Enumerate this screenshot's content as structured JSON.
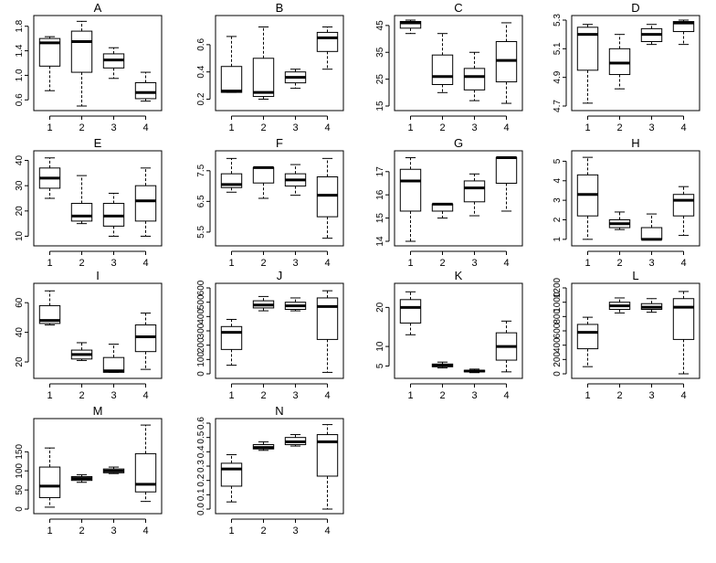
{
  "chart_data": [
    {
      "type": "boxplot",
      "title": "A",
      "categories": [
        "1",
        "2",
        "3",
        "4"
      ],
      "ylim": [
        0.5,
        1.9
      ],
      "yticks": [
        0.6,
        1.0,
        1.4,
        1.8
      ],
      "ytick_labels": [
        "0.6",
        "1.0",
        "1.4",
        "1.8"
      ],
      "boxes": [
        {
          "min": 0.75,
          "q1": 1.15,
          "median": 1.53,
          "q3": 1.6,
          "max": 1.63
        },
        {
          "min": 0.5,
          "q1": 1.05,
          "median": 1.55,
          "q3": 1.72,
          "max": 1.88
        },
        {
          "min": 0.95,
          "q1": 1.12,
          "median": 1.25,
          "q3": 1.35,
          "max": 1.45
        },
        {
          "min": 0.58,
          "q1": 0.62,
          "median": 0.72,
          "q3": 0.88,
          "max": 1.05
        }
      ]
    },
    {
      "type": "boxplot",
      "title": "B",
      "categories": [
        "1",
        "2",
        "3",
        "4"
      ],
      "ylim": [
        0.15,
        0.78
      ],
      "yticks": [
        0.2,
        0.4,
        0.6
      ],
      "ytick_labels": [
        "0.2",
        "0.4",
        "0.6"
      ],
      "boxes": [
        {
          "min": 0.25,
          "q1": 0.25,
          "median": 0.26,
          "q3": 0.44,
          "max": 0.66
        },
        {
          "min": 0.2,
          "q1": 0.22,
          "median": 0.25,
          "q3": 0.5,
          "max": 0.73
        },
        {
          "min": 0.28,
          "q1": 0.32,
          "median": 0.36,
          "q3": 0.4,
          "max": 0.42
        },
        {
          "min": 0.42,
          "q1": 0.55,
          "median": 0.65,
          "q3": 0.69,
          "max": 0.73
        }
      ]
    },
    {
      "type": "boxplot",
      "title": "C",
      "categories": [
        "1",
        "2",
        "3",
        "4"
      ],
      "ylim": [
        15,
        47
      ],
      "yticks": [
        15,
        25,
        35,
        45
      ],
      "ytick_labels": [
        "15",
        "25",
        "35",
        "45"
      ],
      "boxes": [
        {
          "min": 42,
          "q1": 44,
          "median": 46,
          "q3": 46.5,
          "max": 47
        },
        {
          "min": 20,
          "q1": 23,
          "median": 26,
          "q3": 34,
          "max": 42
        },
        {
          "min": 17,
          "q1": 21,
          "median": 26,
          "q3": 29,
          "max": 35
        },
        {
          "min": 16,
          "q1": 24,
          "median": 32,
          "q3": 39,
          "max": 46
        }
      ]
    },
    {
      "type": "boxplot",
      "title": "D",
      "categories": [
        "1",
        "2",
        "3",
        "4"
      ],
      "ylim": [
        4.7,
        5.3
      ],
      "yticks": [
        4.7,
        4.9,
        5.1,
        5.3
      ],
      "ytick_labels": [
        "4.7",
        "4.9",
        "5.1",
        "5.3"
      ],
      "boxes": [
        {
          "min": 4.72,
          "q1": 4.95,
          "median": 5.2,
          "q3": 5.25,
          "max": 5.27
        },
        {
          "min": 4.82,
          "q1": 4.92,
          "median": 5.0,
          "q3": 5.1,
          "max": 5.2
        },
        {
          "min": 5.13,
          "q1": 5.15,
          "median": 5.2,
          "q3": 5.24,
          "max": 5.27
        },
        {
          "min": 5.13,
          "q1": 5.22,
          "median": 5.28,
          "q3": 5.29,
          "max": 5.3
        }
      ]
    },
    {
      "type": "boxplot",
      "title": "E",
      "categories": [
        "1",
        "2",
        "3",
        "4"
      ],
      "ylim": [
        8,
        42
      ],
      "yticks": [
        10,
        20,
        30,
        40
      ],
      "ytick_labels": [
        "10",
        "20",
        "30",
        "40"
      ],
      "boxes": [
        {
          "min": 25,
          "q1": 29,
          "median": 33,
          "q3": 37,
          "max": 41
        },
        {
          "min": 15,
          "q1": 16,
          "median": 18,
          "q3": 23,
          "max": 34
        },
        {
          "min": 10,
          "q1": 14,
          "median": 18,
          "q3": 23,
          "max": 27
        },
        {
          "min": 10,
          "q1": 16,
          "median": 24,
          "q3": 30,
          "max": 37
        }
      ]
    },
    {
      "type": "boxplot",
      "title": "F",
      "categories": [
        "1",
        "2",
        "3",
        "4"
      ],
      "ylim": [
        5.2,
        8.0
      ],
      "yticks": [
        5.5,
        6.5,
        7.5
      ],
      "ytick_labels": [
        "5.5",
        "6.5",
        "7.5"
      ],
      "boxes": [
        {
          "min": 6.8,
          "q1": 6.95,
          "median": 7.05,
          "q3": 7.4,
          "max": 7.9
        },
        {
          "min": 6.6,
          "q1": 7.1,
          "median": 7.6,
          "q3": 7.6,
          "max": 7.6
        },
        {
          "min": 6.7,
          "q1": 7.0,
          "median": 7.2,
          "q3": 7.4,
          "max": 7.7
        },
        {
          "min": 5.3,
          "q1": 6.0,
          "median": 6.7,
          "q3": 7.3,
          "max": 7.9
        }
      ]
    },
    {
      "type": "boxplot",
      "title": "G",
      "categories": [
        "1",
        "2",
        "3",
        "4"
      ],
      "ylim": [
        14,
        17.7
      ],
      "yticks": [
        14,
        15,
        16,
        17
      ],
      "ytick_labels": [
        "14",
        "15",
        "16",
        "17"
      ],
      "boxes": [
        {
          "min": 14.0,
          "q1": 15.3,
          "median": 16.6,
          "q3": 17.1,
          "max": 17.6
        },
        {
          "min": 15.0,
          "q1": 15.3,
          "median": 15.6,
          "q3": 15.6,
          "max": 15.6
        },
        {
          "min": 15.1,
          "q1": 15.7,
          "median": 16.3,
          "q3": 16.6,
          "max": 16.9
        },
        {
          "min": 15.3,
          "q1": 16.5,
          "median": 17.6,
          "q3": 17.6,
          "max": 17.6
        }
      ]
    },
    {
      "type": "boxplot",
      "title": "H",
      "categories": [
        "1",
        "2",
        "3",
        "4"
      ],
      "ylim": [
        0.9,
        5.3
      ],
      "yticks": [
        1,
        2,
        3,
        4,
        5
      ],
      "ytick_labels": [
        "1",
        "2",
        "3",
        "4",
        "5"
      ],
      "boxes": [
        {
          "min": 1.0,
          "q1": 2.2,
          "median": 3.3,
          "q3": 4.3,
          "max": 5.2
        },
        {
          "min": 1.5,
          "q1": 1.6,
          "median": 1.8,
          "q3": 2.0,
          "max": 2.4
        },
        {
          "min": 1.0,
          "q1": 1.0,
          "median": 1.0,
          "q3": 1.6,
          "max": 2.3
        },
        {
          "min": 1.2,
          "q1": 2.2,
          "median": 3.0,
          "q3": 3.3,
          "max": 3.7
        }
      ]
    },
    {
      "type": "boxplot",
      "title": "I",
      "categories": [
        "1",
        "2",
        "3",
        "4"
      ],
      "ylim": [
        12,
        70
      ],
      "yticks": [
        20,
        40,
        60
      ],
      "ytick_labels": [
        "20",
        "40",
        "60"
      ],
      "boxes": [
        {
          "min": 45,
          "q1": 46,
          "median": 48,
          "q3": 58,
          "max": 68
        },
        {
          "min": 21,
          "q1": 22,
          "median": 25,
          "q3": 28,
          "max": 33
        },
        {
          "min": 13,
          "q1": 13,
          "median": 14,
          "q3": 23,
          "max": 32
        },
        {
          "min": 15,
          "q1": 27,
          "median": 37,
          "q3": 45,
          "max": 53
        }
      ]
    },
    {
      "type": "boxplot",
      "title": "J",
      "categories": [
        "1",
        "2",
        "3",
        "4"
      ],
      "ylim": [
        0,
        600
      ],
      "yticks": [
        0,
        100,
        200,
        300,
        400,
        500,
        600
      ],
      "ytick_labels": [
        "0",
        "100",
        "200",
        "300",
        "400",
        "500",
        "600"
      ],
      "boxes": [
        {
          "min": 60,
          "q1": 170,
          "median": 290,
          "q3": 330,
          "max": 380
        },
        {
          "min": 440,
          "q1": 460,
          "median": 480,
          "q3": 510,
          "max": 540
        },
        {
          "min": 440,
          "q1": 450,
          "median": 475,
          "q3": 500,
          "max": 530
        },
        {
          "min": 10,
          "q1": 240,
          "median": 470,
          "q3": 530,
          "max": 580
        }
      ]
    },
    {
      "type": "boxplot",
      "title": "K",
      "categories": [
        "1",
        "2",
        "3",
        "4"
      ],
      "ylim": [
        3,
        25
      ],
      "yticks": [
        5,
        10,
        20
      ],
      "ytick_labels": [
        "5",
        "10",
        "20"
      ],
      "boxes": [
        {
          "min": 13,
          "q1": 16,
          "median": 20,
          "q3": 22,
          "max": 24
        },
        {
          "min": 4.5,
          "q1": 4.8,
          "median": 5.1,
          "q3": 5.5,
          "max": 6.0
        },
        {
          "min": 3.3,
          "q1": 3.5,
          "median": 3.7,
          "q3": 3.9,
          "max": 4.2
        },
        {
          "min": 3.5,
          "q1": 6.5,
          "median": 10,
          "q3": 13.5,
          "max": 16.5
        }
      ]
    },
    {
      "type": "boxplot",
      "title": "L",
      "categories": [
        "1",
        "2",
        "3",
        "4"
      ],
      "ylim": [
        0,
        1200
      ],
      "yticks": [
        0,
        200,
        400,
        600,
        800,
        1000,
        1200
      ],
      "ytick_labels": [
        "0",
        "200",
        "400",
        "600",
        "800",
        "1000",
        "1200"
      ],
      "boxes": [
        {
          "min": 100,
          "q1": 350,
          "median": 580,
          "q3": 690,
          "max": 790
        },
        {
          "min": 850,
          "q1": 900,
          "median": 950,
          "q3": 1000,
          "max": 1060
        },
        {
          "min": 860,
          "q1": 900,
          "median": 930,
          "q3": 980,
          "max": 1050
        },
        {
          "min": 0,
          "q1": 480,
          "median": 930,
          "q3": 1050,
          "max": 1150
        }
      ]
    },
    {
      "type": "boxplot",
      "title": "M",
      "categories": [
        "1",
        "2",
        "3",
        "4"
      ],
      "ylim": [
        0,
        225
      ],
      "yticks": [
        0,
        50,
        100,
        150
      ],
      "ytick_labels": [
        "0",
        "50",
        "100",
        "150"
      ],
      "boxes": [
        {
          "min": 5,
          "q1": 30,
          "median": 60,
          "q3": 110,
          "max": 160
        },
        {
          "min": 70,
          "q1": 75,
          "median": 80,
          "q3": 85,
          "max": 90
        },
        {
          "min": 93,
          "q1": 95,
          "median": 100,
          "q3": 105,
          "max": 110
        },
        {
          "min": 20,
          "q1": 45,
          "median": 65,
          "q3": 145,
          "max": 220
        }
      ]
    },
    {
      "type": "boxplot",
      "title": "N",
      "categories": [
        "1",
        "2",
        "3",
        "4"
      ],
      "ylim": [
        0,
        0.6
      ],
      "yticks": [
        0.0,
        0.1,
        0.2,
        0.3,
        0.4,
        0.5,
        0.6
      ],
      "ytick_labels": [
        "0.0",
        "0.1",
        "0.2",
        "0.3",
        "0.4",
        "0.5",
        "0.6"
      ],
      "boxes": [
        {
          "min": 0.05,
          "q1": 0.16,
          "median": 0.28,
          "q3": 0.32,
          "max": 0.38
        },
        {
          "min": 0.41,
          "q1": 0.42,
          "median": 0.43,
          "q3": 0.45,
          "max": 0.47
        },
        {
          "min": 0.44,
          "q1": 0.45,
          "median": 0.47,
          "q3": 0.5,
          "max": 0.52
        },
        {
          "min": 0.0,
          "q1": 0.23,
          "median": 0.47,
          "q3": 0.52,
          "max": 0.59
        }
      ]
    }
  ]
}
